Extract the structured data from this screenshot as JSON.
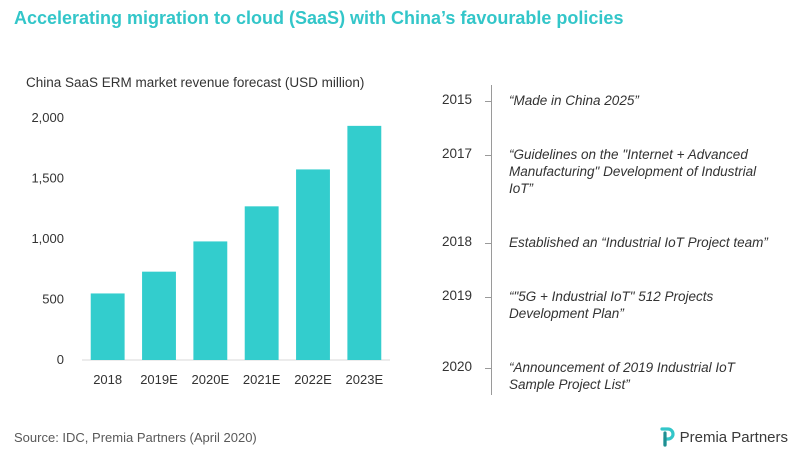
{
  "title": "Accelerating migration to cloud (SaaS) with China’s favourable policies",
  "source": "Source: IDC, Premia Partners (April 2020)",
  "logo": {
    "text": "Premia Partners",
    "icon": "premia-logo-icon"
  },
  "colors": {
    "accent": "#33c6c9",
    "bar": "#33cdcd"
  },
  "chart_data": {
    "type": "bar",
    "title": "China SaaS ERM market revenue forecast (USD million)",
    "categories": [
      "2018",
      "2019E",
      "2020E",
      "2021E",
      "2022E",
      "2023E"
    ],
    "values": [
      550,
      730,
      980,
      1270,
      1575,
      1935
    ],
    "yticks": [
      "0",
      "500",
      "1,000",
      "1,500",
      "2,000"
    ],
    "ytick_values": [
      0,
      500,
      1000,
      1500,
      2000
    ],
    "ylim": [
      0,
      2000
    ],
    "xlabel": "",
    "ylabel": "",
    "grid": false,
    "legend": "none"
  },
  "timeline": [
    {
      "year": "2015",
      "lines": [
        "“Made in China 2025”"
      ]
    },
    {
      "year": "2017",
      "lines": [
        "“Guidelines on the \"Internet + Advanced",
        "Manufacturing\" Development of Industrial",
        "IoT”"
      ]
    },
    {
      "year": "2018",
      "lines": [
        "Established an “Industrial IoT Project team”"
      ]
    },
    {
      "year": "2019",
      "lines": [
        "“\"5G + Industrial IoT\" 512 Projects",
        "Development Plan”"
      ]
    },
    {
      "year": "2020",
      "lines": [
        "“Announcement of 2019 Industrial IoT",
        "Sample Project List”"
      ]
    }
  ]
}
